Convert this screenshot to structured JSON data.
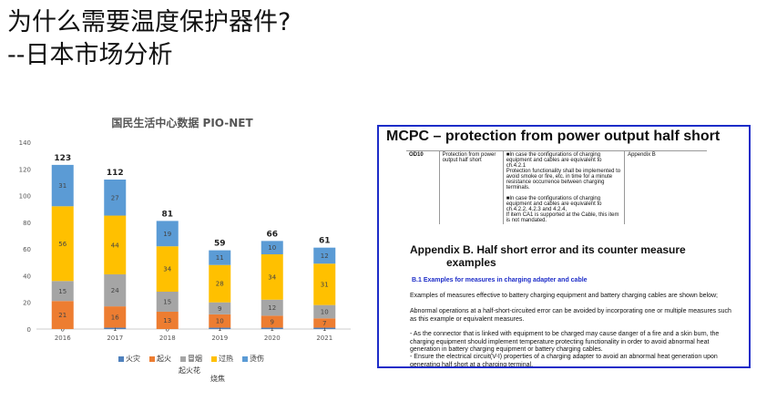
{
  "title": {
    "line1": "为什么需要温度保护器件?",
    "line2": "--日本市场分析"
  },
  "colors": {
    "fire": "#4f81bd",
    "ignition": "#ed7d31",
    "smoke": "#a5a5a5",
    "overheat": "#ffc000",
    "burn": "#5b9bd5",
    "panel_border": "#1c2cc8"
  },
  "chart_data": {
    "type": "bar",
    "stacked": true,
    "title": "国民生活中心数据 PIO-NET",
    "categories": [
      "2016",
      "2017",
      "2018",
      "2019",
      "2020",
      "2021"
    ],
    "series": [
      {
        "name": "火灾",
        "values": [
          0,
          1,
          0,
          1,
          1,
          1
        ]
      },
      {
        "name": "起火",
        "values": [
          21,
          16,
          13,
          10,
          9,
          7
        ]
      },
      {
        "name": "冒烟",
        "values": [
          15,
          24,
          15,
          9,
          12,
          10
        ]
      },
      {
        "name": "过热",
        "values": [
          56,
          44,
          34,
          28,
          34,
          31
        ]
      },
      {
        "name": "烫伤",
        "values": [
          31,
          27,
          19,
          11,
          10,
          12
        ]
      }
    ],
    "totals": [
      123,
      112,
      81,
      59,
      66,
      61
    ],
    "ylim": [
      0,
      140
    ],
    "yticks": [
      0,
      20,
      40,
      60,
      80,
      100,
      120,
      140
    ],
    "grid": false,
    "legend": "bottom",
    "legend_sublabels": [
      "起火花",
      "烧焦"
    ]
  },
  "document": {
    "heading": "MCPC – protection from power output half short",
    "table": {
      "id": "OD10",
      "item": "Protection from power output half short",
      "requirement": [
        "■In case the configurations of charging equipment and cables are equivalent to ch.4.2.1",
        "Protection functionality shall be implemented to avoid smoke or fire, etc. in time for a minute resistance occurrence between charging terminals.",
        "■In case the configurations of charging equipment and cables are equivalent to ch.4.2.2, 4.2.3 and 4.2.4,",
        "If item CA1 is supported at the Cable, this item is not mandated."
      ],
      "reference": "Appendix B"
    },
    "appendix_line1": "Appendix B.     Half short error and its counter measure",
    "appendix_line2": "examples",
    "section": "B.1   Examples for measures in charging adapter and cable",
    "para1": "Examples of measures effective to battery charging equipment and battery charging cables are shown below;",
    "para2": "Abnormal operations at a half-short-circuited error can be avoided by incorporating one or multiple measures such as this example or equivalent measures.",
    "para3": "-  As the connector that is linked with equipment to be charged may cause danger of a fire and a skin burn, the charging equipment should implement temperature protecting functionality in order to avoid abnormal heat generation in battery charging equipment or battery charging cables.",
    "para4": "- Ensure  the electrical circuit(V-I) properties of a charging adapter to avoid an abnormal heat generation   upon generating half short at a charging terminal."
  }
}
